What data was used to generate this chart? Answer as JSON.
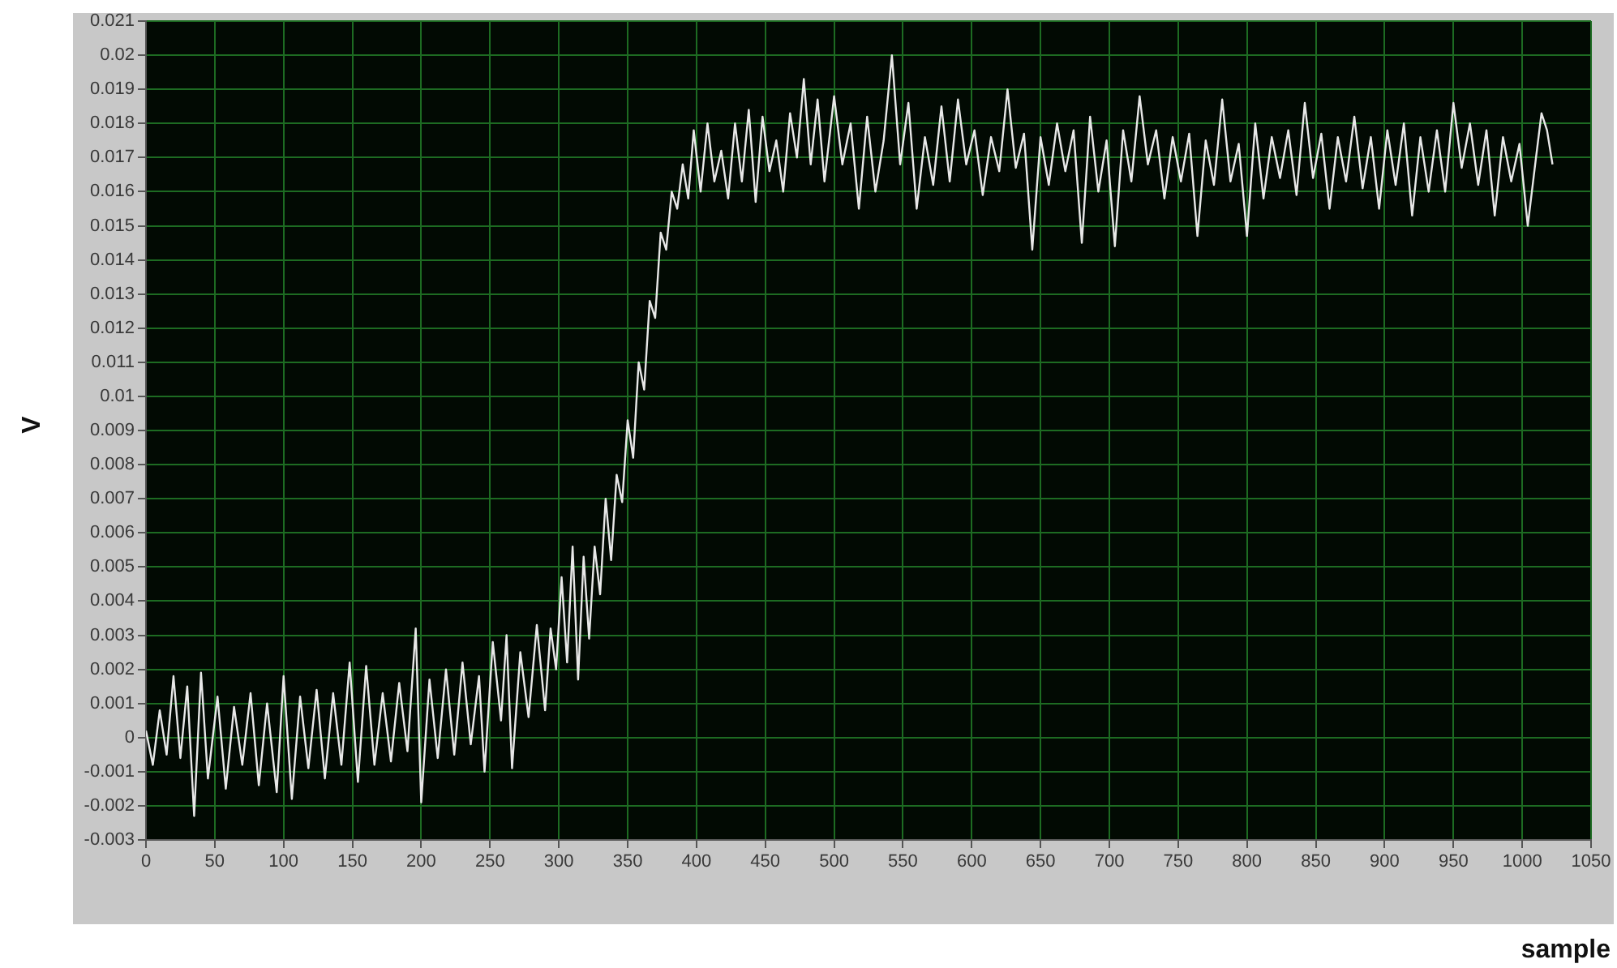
{
  "chart_data": {
    "type": "line",
    "xlabel": "sample",
    "ylabel": "V",
    "xlim": [
      0,
      1050
    ],
    "xticks": [
      0,
      50,
      100,
      150,
      200,
      250,
      300,
      350,
      400,
      450,
      500,
      550,
      600,
      650,
      700,
      750,
      800,
      850,
      900,
      950,
      1000,
      1050
    ],
    "ylim": [
      -0.003,
      0.021
    ],
    "yticks": [
      -0.003,
      -0.002,
      -0.001,
      0,
      0.001,
      0.002,
      0.003,
      0.004,
      0.005,
      0.006,
      0.007,
      0.008,
      0.009,
      0.01,
      0.011,
      0.012,
      0.013,
      0.014,
      0.015,
      0.016,
      0.017,
      0.018,
      0.019,
      0.02,
      0.021
    ],
    "grid": true,
    "legend": false,
    "marker": "none",
    "line_style": "solid",
    "series": [
      {
        "color": "#e8e8e8",
        "x": [
          0,
          5,
          10,
          15,
          20,
          25,
          30,
          35,
          40,
          45,
          52,
          58,
          64,
          70,
          76,
          82,
          88,
          95,
          100,
          106,
          112,
          118,
          124,
          130,
          136,
          142,
          148,
          154,
          160,
          166,
          172,
          178,
          184,
          190,
          196,
          200,
          206,
          212,
          218,
          224,
          230,
          236,
          242,
          246,
          252,
          258,
          262,
          266,
          272,
          278,
          284,
          290,
          294,
          298,
          302,
          306,
          310,
          314,
          318,
          322,
          326,
          330,
          334,
          338,
          342,
          346,
          350,
          354,
          358,
          362,
          366,
          370,
          374,
          378,
          382,
          386,
          390,
          394,
          398,
          403,
          408,
          413,
          418,
          423,
          428,
          433,
          438,
          443,
          448,
          453,
          458,
          463,
          468,
          473,
          478,
          483,
          488,
          493,
          500,
          506,
          512,
          518,
          524,
          530,
          536,
          542,
          548,
          554,
          560,
          566,
          572,
          578,
          584,
          590,
          596,
          602,
          608,
          614,
          620,
          626,
          632,
          638,
          644,
          650,
          656,
          662,
          668,
          674,
          680,
          686,
          692,
          698,
          704,
          710,
          716,
          722,
          728,
          734,
          740,
          746,
          752,
          758,
          764,
          770,
          776,
          782,
          788,
          794,
          800,
          806,
          812,
          818,
          824,
          830,
          836,
          842,
          848,
          854,
          860,
          866,
          872,
          878,
          884,
          890,
          896,
          902,
          908,
          914,
          920,
          926,
          932,
          938,
          944,
          950,
          956,
          962,
          968,
          974,
          980,
          986,
          992,
          998,
          1004,
          1010,
          1014,
          1018,
          1022
        ],
        "values": [
          0.0002,
          -0.0008,
          0.0008,
          -0.0005,
          0.0018,
          -0.0006,
          0.0015,
          -0.0023,
          0.0019,
          -0.0012,
          0.0012,
          -0.0015,
          0.0009,
          -0.0008,
          0.0013,
          -0.0014,
          0.001,
          -0.0016,
          0.0018,
          -0.0018,
          0.0012,
          -0.0009,
          0.0014,
          -0.0012,
          0.0013,
          -0.0008,
          0.0022,
          -0.0013,
          0.0021,
          -0.0008,
          0.0013,
          -0.0007,
          0.0016,
          -0.0004,
          0.0032,
          -0.0019,
          0.0017,
          -0.0006,
          0.002,
          -0.0005,
          0.0022,
          -0.0002,
          0.0018,
          -0.001,
          0.0028,
          0.0005,
          0.003,
          -0.0009,
          0.0025,
          0.0006,
          0.0033,
          0.0008,
          0.0032,
          0.002,
          0.0047,
          0.0022,
          0.0056,
          0.0017,
          0.0053,
          0.0029,
          0.0056,
          0.0042,
          0.007,
          0.0052,
          0.0077,
          0.0069,
          0.0093,
          0.0082,
          0.011,
          0.0102,
          0.0128,
          0.0123,
          0.0148,
          0.0143,
          0.016,
          0.0155,
          0.0168,
          0.0158,
          0.0178,
          0.016,
          0.018,
          0.0163,
          0.0172,
          0.0158,
          0.018,
          0.0163,
          0.0184,
          0.0157,
          0.0182,
          0.0166,
          0.0175,
          0.016,
          0.0183,
          0.017,
          0.0193,
          0.0168,
          0.0187,
          0.0163,
          0.0188,
          0.0168,
          0.018,
          0.0155,
          0.0182,
          0.016,
          0.0175,
          0.02,
          0.0168,
          0.0186,
          0.0155,
          0.0176,
          0.0162,
          0.0185,
          0.0163,
          0.0187,
          0.0168,
          0.0178,
          0.0159,
          0.0176,
          0.0166,
          0.019,
          0.0167,
          0.0177,
          0.0143,
          0.0176,
          0.0162,
          0.018,
          0.0166,
          0.0178,
          0.0145,
          0.0182,
          0.016,
          0.0175,
          0.0144,
          0.0178,
          0.0163,
          0.0188,
          0.0168,
          0.0178,
          0.0158,
          0.0176,
          0.0163,
          0.0177,
          0.0147,
          0.0175,
          0.0162,
          0.0187,
          0.0163,
          0.0174,
          0.0147,
          0.018,
          0.0158,
          0.0176,
          0.0164,
          0.0178,
          0.0159,
          0.0186,
          0.0164,
          0.0177,
          0.0155,
          0.0176,
          0.0163,
          0.0182,
          0.0161,
          0.0176,
          0.0155,
          0.0178,
          0.0162,
          0.018,
          0.0153,
          0.0176,
          0.016,
          0.0178,
          0.016,
          0.0186,
          0.0167,
          0.018,
          0.0162,
          0.0178,
          0.0153,
          0.0176,
          0.0163,
          0.0174,
          0.015,
          0.017,
          0.0183,
          0.0178,
          0.0168
        ]
      }
    ]
  }
}
